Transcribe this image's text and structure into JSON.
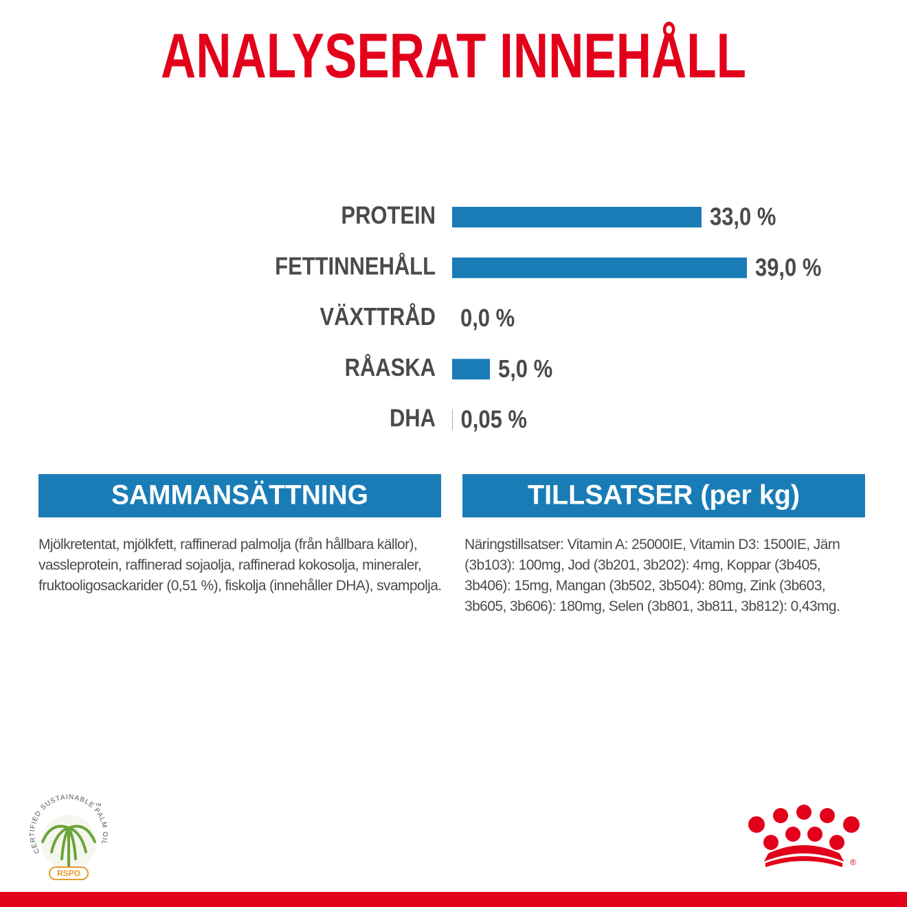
{
  "title": "ANALYSERAT INNEHÅLL",
  "chart_data": {
    "type": "bar",
    "orientation": "horizontal",
    "categories": [
      "PROTEIN",
      "FETTINNEHÅLL",
      "VÄXTTRÅD",
      "RÅASKA",
      "DHA"
    ],
    "values": [
      33.0,
      39.0,
      0.0,
      5.0,
      0.05
    ],
    "value_labels": [
      "33,0 %",
      "39,0 %",
      "0,0 %",
      "5,0 %",
      "0,05 %"
    ],
    "color": "#1a7cb6"
  },
  "sections": [
    {
      "heading": "SAMMANSÄTTNING",
      "text": "Mjölkretentat, mjölkfett, raffinerad palmolja (från hållbara källor), vassleprotein, raffinerad sojaolja, raffinerad kokosolja, mineraler, fruktooligosackarider (0,51 %), fiskolja (innehåller DHA), svampolja."
    },
    {
      "heading": "TILLSATSER (per kg)",
      "text": "Näringstillsatser: Vitamin A: 25000IE, Vitamin D3: 1500IE, Järn (3b103): 100mg, Jod (3b201, 3b202): 4mg, Koppar (3b405, 3b406): 15mg, Mangan (3b502, 3b504): 80mg, Zink (3b603, 3b605, 3b606): 180mg, Selen (3b801, 3b811, 3b812): 0,43mg."
    }
  ],
  "logos": {
    "rspo_ring": "CERTIFIED SUSTAINABLE PALM OIL",
    "rspo_tm": "™",
    "rspo_badge": "RSPO",
    "registered": "®"
  }
}
